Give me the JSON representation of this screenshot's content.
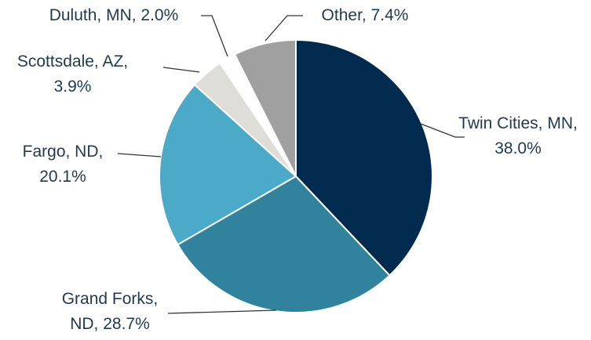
{
  "chart_data": {
    "type": "pie",
    "values": [
      38.0,
      28.7,
      20.1,
      3.9,
      2.0,
      7.4
    ],
    "value_labels": [
      "Twin Cities, MN, 38.0%",
      "Grand Forks, ND, 28.7%",
      "Fargo, ND, 20.1%",
      "Scottsdale, AZ, 3.9%",
      "Duluth, MN, 2.0%",
      "Other, 7.4%"
    ],
    "colors": [
      "#002b4f",
      "#31829c",
      "#4aaac8",
      "#deddd8",
      "#ffffff",
      "#a0a0a0"
    ]
  }
}
